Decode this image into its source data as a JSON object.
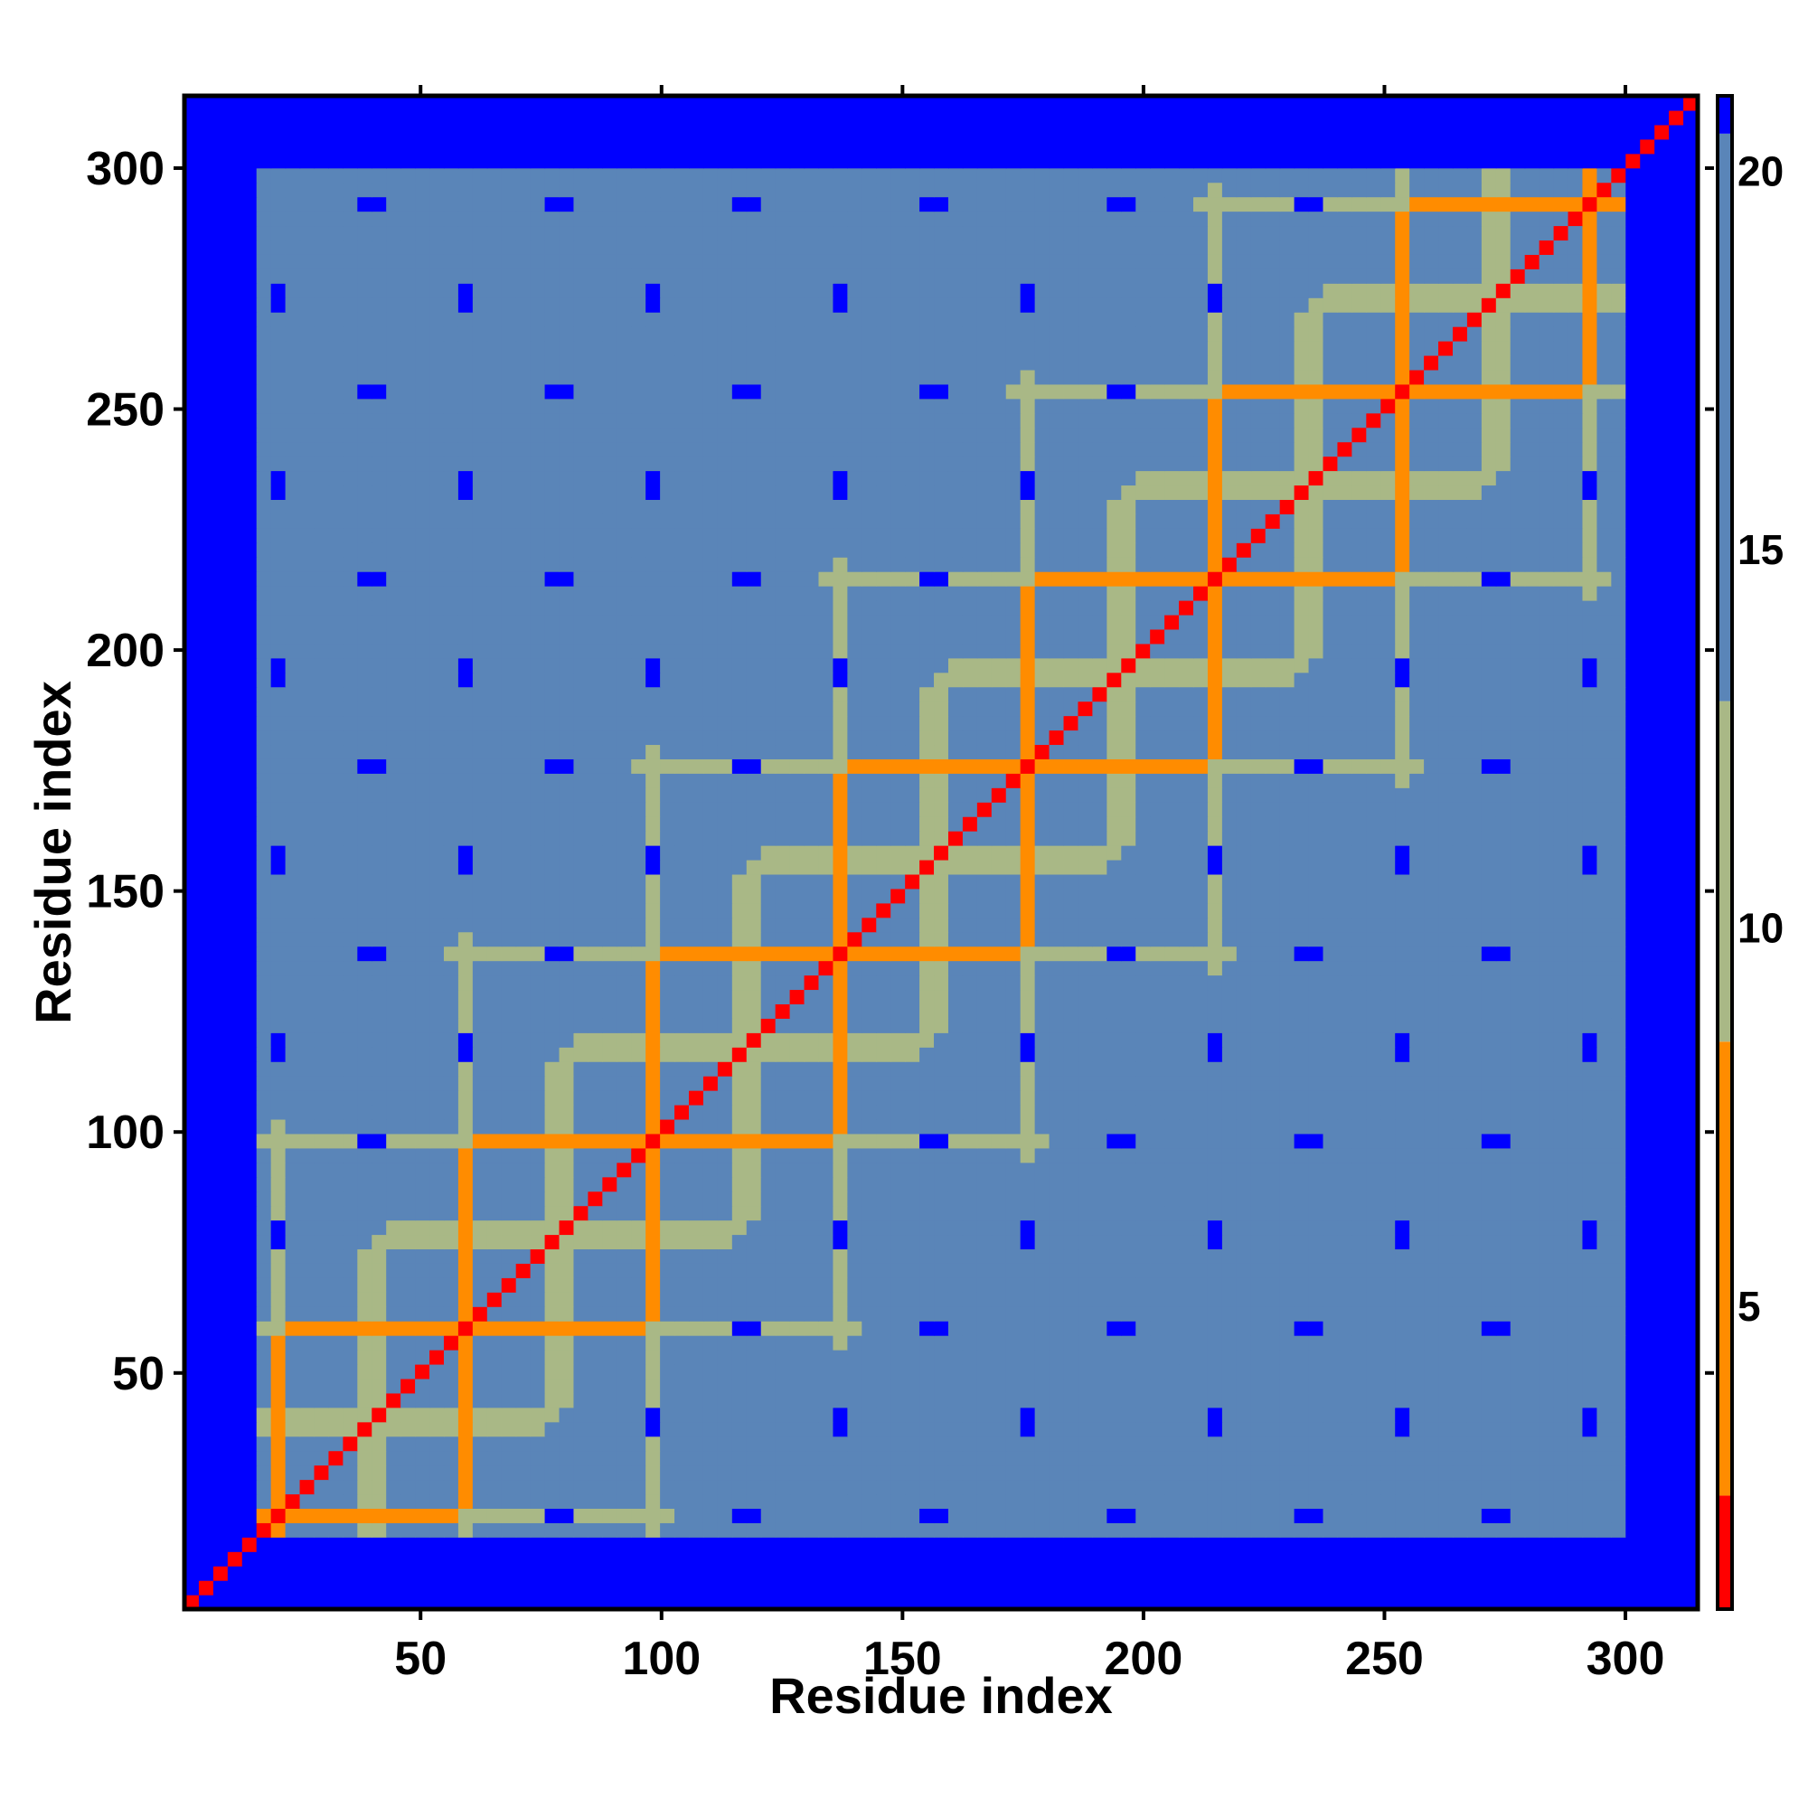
{
  "chart_data": {
    "type": "heatmap",
    "title": "",
    "xlabel": "Residue index",
    "ylabel": "Residue index",
    "n_residues": 315,
    "xlim": [
      1,
      315
    ],
    "ylim": [
      1,
      315
    ],
    "x_ticks": [
      50,
      100,
      150,
      200,
      250,
      300
    ],
    "y_ticks": [
      50,
      100,
      150,
      200,
      250,
      300
    ],
    "colorbar": {
      "range": [
        1,
        21
      ],
      "ticks": [
        5,
        10,
        15,
        20
      ],
      "colors": [
        "#ff0000",
        "#ff8c00",
        "#a9b886",
        "#5a85b8",
        "#0000ff"
      ]
    },
    "structure": {
      "diagonal_value": 1,
      "background_value": 18,
      "far_value": 21,
      "repeat_period_residues": 39,
      "contact_band_residues": 38,
      "symmetric": true
    }
  }
}
